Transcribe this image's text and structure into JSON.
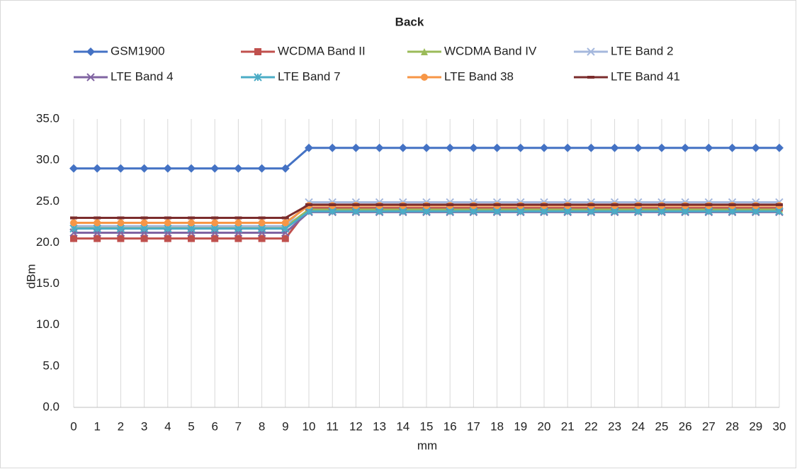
{
  "chart_data": {
    "type": "line",
    "title": "Back",
    "x_label": "mm",
    "y_label": "dBm",
    "categories": [
      "0",
      "1",
      "2",
      "3",
      "4",
      "5",
      "6",
      "7",
      "8",
      "9",
      "10",
      "11",
      "12",
      "13",
      "14",
      "15",
      "16",
      "17",
      "18",
      "19",
      "20",
      "21",
      "22",
      "23",
      "24",
      "25",
      "26",
      "27",
      "28",
      "29",
      "30"
    ],
    "ylim": [
      0,
      35
    ],
    "yticks": [
      {
        "value": 0,
        "label": "0.0"
      },
      {
        "value": 5,
        "label": "5.0"
      },
      {
        "value": 10,
        "label": "10.0"
      },
      {
        "value": 15,
        "label": "15.0"
      },
      {
        "value": 20,
        "label": "20.0"
      },
      {
        "value": 25,
        "label": "25.0"
      },
      {
        "value": 30,
        "label": "30.0"
      },
      {
        "value": 35,
        "label": "35.0"
      }
    ],
    "grid": true,
    "series": [
      {
        "name": "GSM1900",
        "color": "#4472c4",
        "marker": "diamond",
        "values": [
          29,
          29,
          29,
          29,
          29,
          29,
          29,
          29,
          29,
          29,
          31.5,
          31.5,
          31.5,
          31.5,
          31.5,
          31.5,
          31.5,
          31.5,
          31.5,
          31.5,
          31.5,
          31.5,
          31.5,
          31.5,
          31.5,
          31.5,
          31.5,
          31.5,
          31.5,
          31.5,
          31.5
        ]
      },
      {
        "name": "WCDMA Band II",
        "color": "#c0504d",
        "marker": "square",
        "values": [
          20.5,
          20.5,
          20.5,
          20.5,
          20.5,
          20.5,
          20.5,
          20.5,
          20.5,
          20.5,
          24.2,
          24.2,
          24.2,
          24.2,
          24.2,
          24.2,
          24.2,
          24.2,
          24.2,
          24.2,
          24.2,
          24.2,
          24.2,
          24.2,
          24.2,
          24.2,
          24.2,
          24.2,
          24.2,
          24.2,
          24.2
        ]
      },
      {
        "name": "WCDMA Band IV",
        "color": "#9bbb59",
        "marker": "triangle",
        "values": [
          21.9,
          21.9,
          21.9,
          21.9,
          21.9,
          21.9,
          21.9,
          21.9,
          21.9,
          21.9,
          24,
          24,
          24,
          24,
          24,
          24,
          24,
          24,
          24,
          24,
          24,
          24,
          24,
          24,
          24,
          24,
          24,
          24,
          24,
          24,
          24
        ]
      },
      {
        "name": "LTE Band 2",
        "color": "#a5b8dd",
        "marker": "x",
        "values": [
          22,
          22,
          22,
          22,
          22,
          22,
          22,
          22,
          22,
          22,
          24.9,
          24.9,
          24.9,
          24.9,
          24.9,
          24.9,
          24.9,
          24.9,
          24.9,
          24.9,
          24.9,
          24.9,
          24.9,
          24.9,
          24.9,
          24.9,
          24.9,
          24.9,
          24.9,
          24.9,
          24.9
        ]
      },
      {
        "name": "LTE Band 4",
        "color": "#8064a2",
        "marker": "x",
        "values": [
          21.2,
          21.2,
          21.2,
          21.2,
          21.2,
          21.2,
          21.2,
          21.2,
          21.2,
          21.2,
          23.7,
          23.7,
          23.7,
          23.7,
          23.7,
          23.7,
          23.7,
          23.7,
          23.7,
          23.7,
          23.7,
          23.7,
          23.7,
          23.7,
          23.7,
          23.7,
          23.7,
          23.7,
          23.7,
          23.7,
          23.7
        ]
      },
      {
        "name": "LTE Band 7",
        "color": "#4bacc6",
        "marker": "asterisk",
        "values": [
          21.7,
          21.7,
          21.7,
          21.7,
          21.7,
          21.7,
          21.7,
          21.7,
          21.7,
          21.7,
          23.8,
          23.8,
          23.8,
          23.8,
          23.8,
          23.8,
          23.8,
          23.8,
          23.8,
          23.8,
          23.8,
          23.8,
          23.8,
          23.8,
          23.8,
          23.8,
          23.8,
          23.8,
          23.8,
          23.8,
          23.8
        ]
      },
      {
        "name": "LTE Band 38",
        "color": "#f79646",
        "marker": "circle",
        "values": [
          22.4,
          22.4,
          22.4,
          22.4,
          22.4,
          22.4,
          22.4,
          22.4,
          22.4,
          22.4,
          24.5,
          24.5,
          24.5,
          24.5,
          24.5,
          24.5,
          24.5,
          24.5,
          24.5,
          24.5,
          24.5,
          24.5,
          24.5,
          24.5,
          24.5,
          24.5,
          24.5,
          24.5,
          24.5,
          24.5,
          24.5
        ]
      },
      {
        "name": "LTE Band 41",
        "color": "#7b2c2c",
        "marker": "dash",
        "values": [
          23,
          23,
          23,
          23,
          23,
          23,
          23,
          23,
          23,
          23,
          24.6,
          24.6,
          24.6,
          24.6,
          24.6,
          24.6,
          24.6,
          24.6,
          24.6,
          24.6,
          24.6,
          24.6,
          24.6,
          24.6,
          24.6,
          24.6,
          24.6,
          24.6,
          24.6,
          24.6,
          24.6
        ]
      }
    ]
  }
}
